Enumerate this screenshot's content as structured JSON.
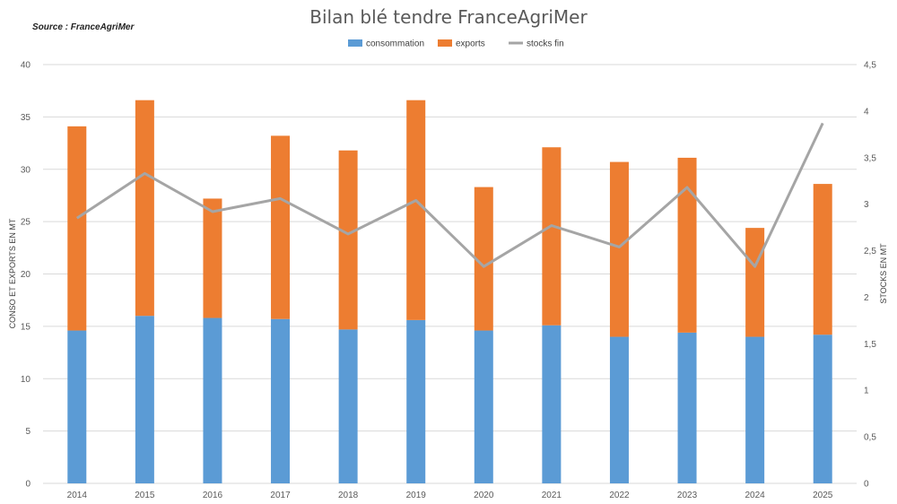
{
  "chart_data": {
    "type": "bar",
    "stacked": true,
    "title": "Bilan blé tendre FranceAgriMer",
    "source": "Source : FranceAgriMer",
    "categories": [
      "2014",
      "2015",
      "2016",
      "2017",
      "2018",
      "2019",
      "2020",
      "2021",
      "2022",
      "2023",
      "2024",
      "2025"
    ],
    "series": [
      {
        "name": "consommation",
        "type": "bar",
        "axis": "left",
        "color": "#5b9bd5",
        "values": [
          14.6,
          16.0,
          15.8,
          15.7,
          14.7,
          15.6,
          14.6,
          15.1,
          14.0,
          14.4,
          14.0,
          14.2
        ]
      },
      {
        "name": "exports",
        "type": "bar",
        "axis": "left",
        "color": "#ed7d31",
        "values": [
          19.5,
          20.6,
          11.4,
          17.5,
          17.1,
          21.0,
          13.7,
          17.0,
          16.7,
          16.7,
          10.4,
          14.4
        ]
      },
      {
        "name": "stocks fin",
        "type": "line",
        "axis": "right",
        "color": "#a5a5a5",
        "values": [
          2.85,
          3.33,
          2.92,
          3.06,
          2.68,
          3.04,
          2.33,
          2.77,
          2.54,
          3.18,
          2.33,
          3.87
        ]
      }
    ],
    "ylabel": "CONSO ET EXPORTS EN MT",
    "ylabel_right": "STOCKS EN MT",
    "ylim": [
      0,
      40
    ],
    "ylim_right": [
      0,
      4.5
    ],
    "yticks": [
      "0",
      "5",
      "10",
      "15",
      "20",
      "25",
      "30",
      "35",
      "40"
    ],
    "yticks_right": [
      "0",
      "0,5",
      "1",
      "1,5",
      "2",
      "2,5",
      "3",
      "3,5",
      "4",
      "4,5"
    ],
    "grid": true,
    "legend_position": "top-center"
  }
}
